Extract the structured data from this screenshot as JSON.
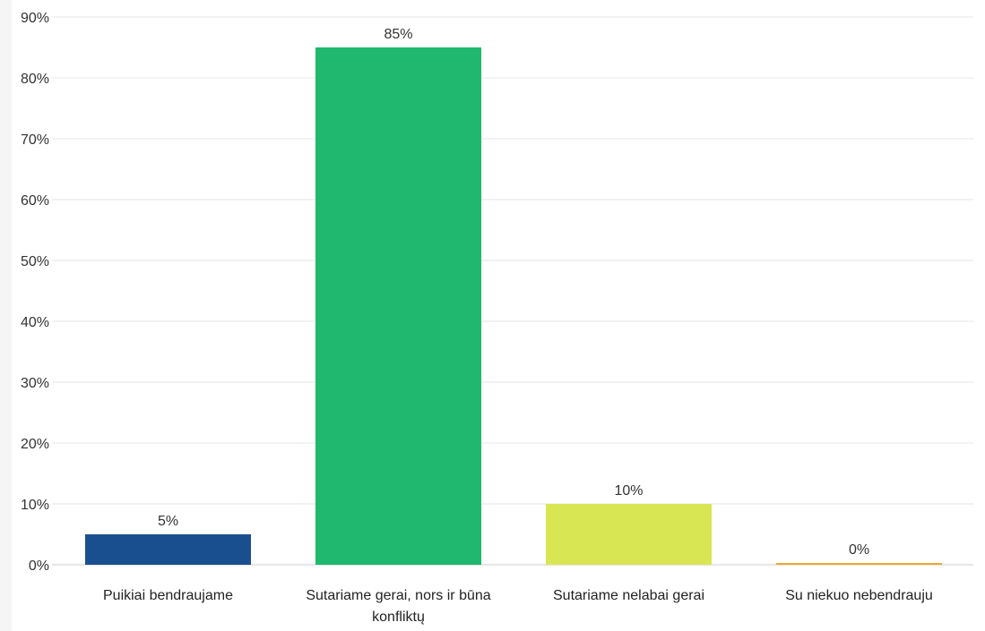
{
  "chart_data": {
    "type": "bar",
    "categories": [
      "Puikiai bendraujame",
      "Sutariame gerai, nors ir būna konfliktų",
      "Sutariame nelabai gerai",
      "Su niekuo nebendrauju"
    ],
    "values": [
      5,
      85,
      10,
      0
    ],
    "value_labels": [
      "5%",
      "85%",
      "10%",
      "0%"
    ],
    "colors": [
      "#1a4f8f",
      "#1fb86e",
      "#d9e653",
      "#f0a830"
    ],
    "ylim": [
      0,
      90
    ],
    "y_ticks": [
      0,
      10,
      20,
      30,
      40,
      50,
      60,
      70,
      80,
      90
    ],
    "y_tick_suffix": "%",
    "grid": true,
    "title": "",
    "xlabel": "",
    "ylabel": ""
  }
}
